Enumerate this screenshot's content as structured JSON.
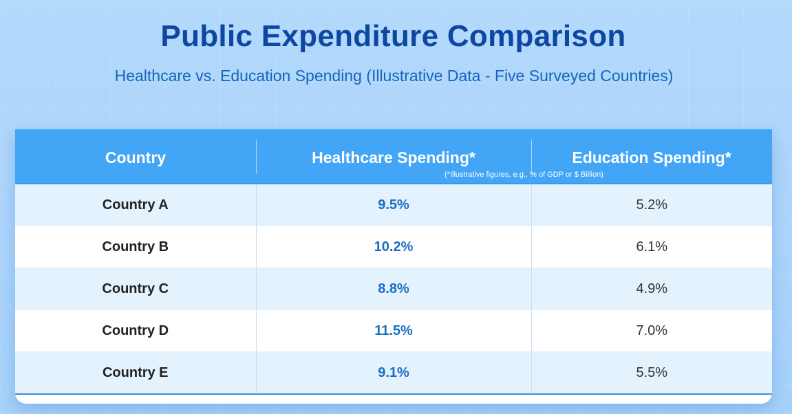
{
  "title": "Public Expenditure Comparison",
  "subtitle": "Healthcare vs. Education Spending (Illustrative Data - Five Surveyed Countries)",
  "footnote": "(*Illustrative figures, e.g., % of GDP or $ Billion)",
  "colors": {
    "title": "#0d47a1",
    "header_bg": "#42a5f5",
    "healthcare_value": "#1a6fc4"
  },
  "chart_data": {
    "type": "table",
    "title": "Public Expenditure Comparison",
    "subtitle": "Healthcare vs. Education Spending (Illustrative Data - Five Surveyed Countries)",
    "columns": [
      "Country",
      "Healthcare Spending*",
      "Education Spending*"
    ],
    "rows": [
      {
        "country": "Country A",
        "healthcare": "9.5%",
        "education": "5.2%"
      },
      {
        "country": "Country B",
        "healthcare": "10.2%",
        "education": "6.1%"
      },
      {
        "country": "Country C",
        "healthcare": "8.8%",
        "education": "4.9%"
      },
      {
        "country": "Country D",
        "healthcare": "11.5%",
        "education": "7.0%"
      },
      {
        "country": "Country E",
        "healthcare": "9.1%",
        "education": "5.5%"
      }
    ],
    "footnote": "(*Illustrative figures, e.g., % of GDP or $ Billion)"
  }
}
